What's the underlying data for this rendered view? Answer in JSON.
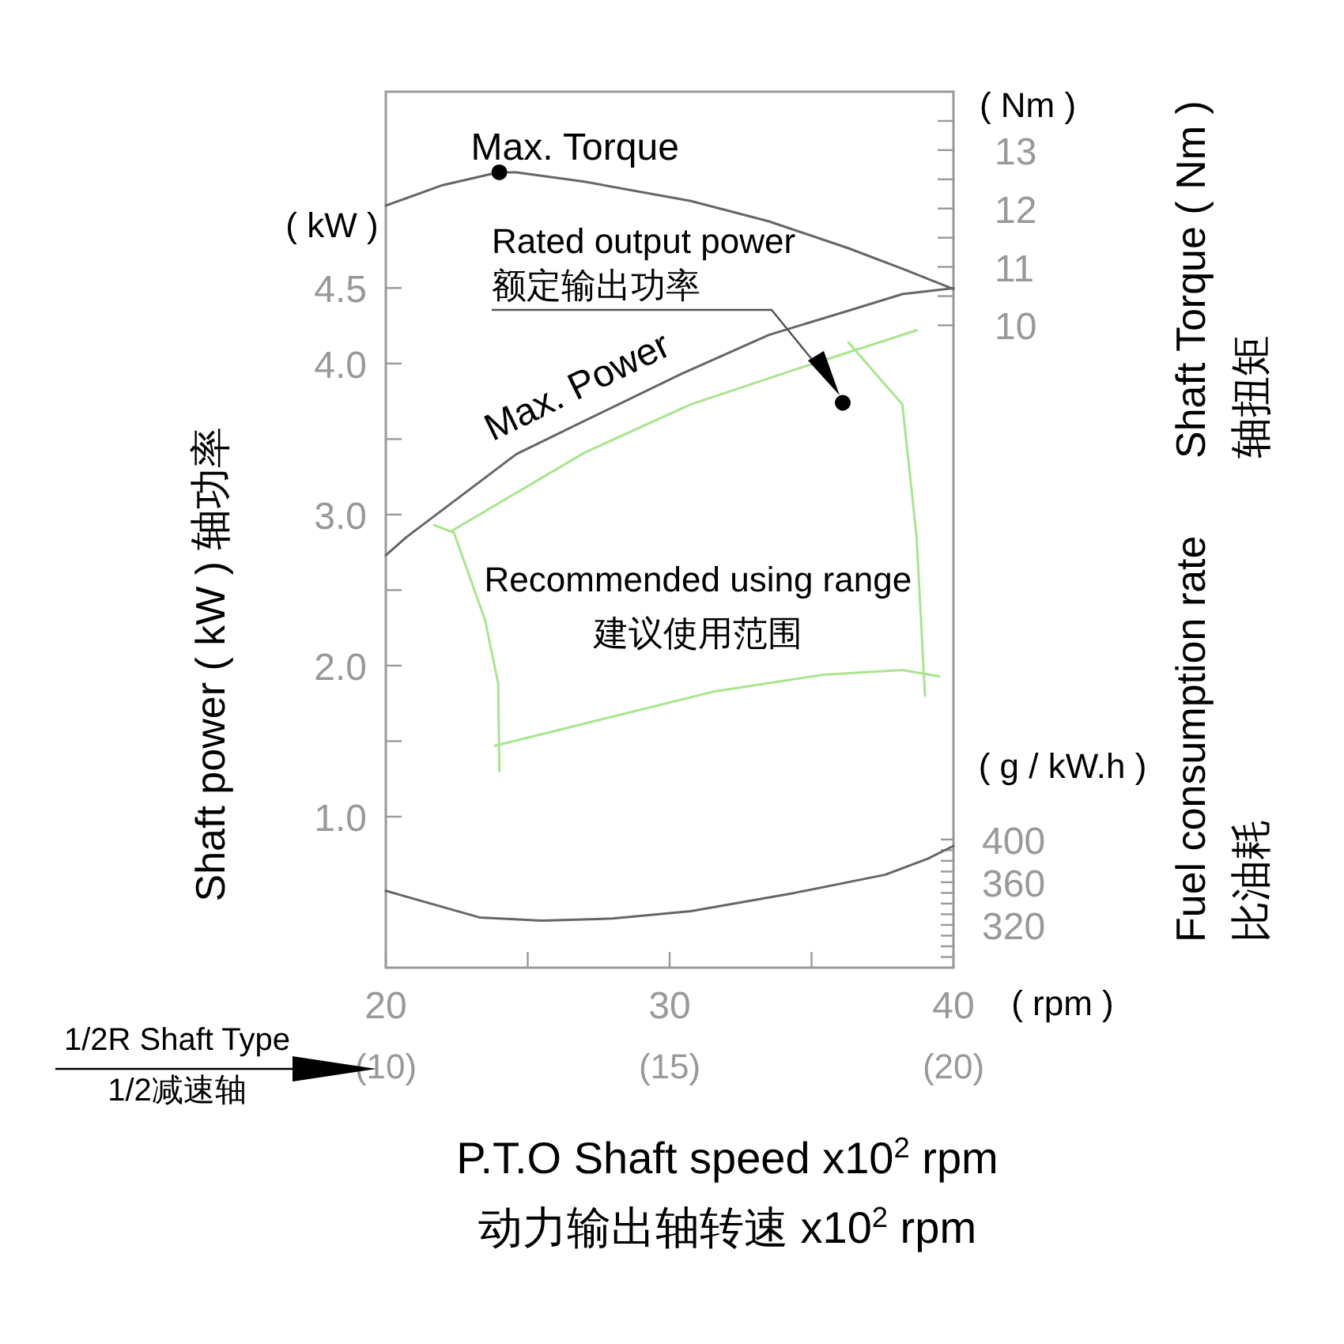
{
  "chart_data": {
    "type": "line",
    "xlabel": "P.T.O Shaft speed x10$^{2}$ rpm\n动力输出轴转速 x10$^{2}$ rpm",
    "x2label": "1/2R Shaft Type\n1/2减速轴",
    "ylabel": "Shaft power ( kW )   轴功率",
    "y2label": "Shaft Torque ( Nm )\n轴扭矩",
    "y3label": "Fuel consumption  rate\n比油耗",
    "xlim": [
      20,
      40
    ],
    "xticks": [
      20,
      {
        "value": 25,
        "label": null
      },
      30,
      {
        "value": 35,
        "label": null
      },
      40
    ],
    "x2lim": [
      10,
      20
    ],
    "x2ticks": [
      {
        "value": 10,
        "label": "(10)"
      },
      {
        "value": 15,
        "label": "(15)"
      },
      {
        "value": 20,
        "label": "(20)"
      }
    ],
    "ylim": [
      0,
      5.8
    ],
    "yticks": [
      {
        "value": 1,
        "label": "1.0"
      },
      {
        "value": 1.5,
        "label": null
      },
      {
        "value": 2,
        "label": "2.0"
      },
      {
        "value": 2.5,
        "label": null
      },
      {
        "value": 3,
        "label": "3.0"
      },
      {
        "value": 3.5,
        "label": null
      },
      {
        "value": 4,
        "label": "4.0"
      },
      4.5
    ],
    "y2lim": [
      -1,
      14
    ],
    "y2ticks": [
      10,
      {
        "value": 10.5,
        "label": null
      },
      11,
      {
        "value": 11.5,
        "label": null
      },
      12,
      {
        "value": 12.5,
        "label": null
      },
      13,
      {
        "value": 13.5,
        "label": null
      }
    ],
    "y3lim": [
      280,
      1100
    ],
    "y3ticks": [
      {
        "value": 290,
        "label": null
      },
      {
        "value": 300,
        "label": null
      },
      {
        "value": 310,
        "label": null
      },
      320,
      {
        "value": 330,
        "label": null
      },
      {
        "value": 340,
        "label": null
      },
      {
        "value": 350,
        "label": null
      },
      360,
      {
        "value": 370,
        "label": null
      },
      {
        "value": 380,
        "label": null
      },
      {
        "value": 390,
        "label": null
      },
      400
    ],
    "series": [
      {
        "color": "#666666",
        "axis": "y2",
        "x": [
          20,
          22,
          23.96,
          24.6,
          27,
          30.75,
          33.5,
          36.3,
          38.2,
          40
        ],
        "values": [
          12.05,
          12.4,
          12.62,
          12.62,
          12.46,
          12.13,
          11.78,
          11.32,
          10.97,
          10.62
        ]
      },
      {
        "name": "Max. Torque",
        "type": "scatter",
        "color": "#000000",
        "axis": "y2",
        "x": [
          24
        ],
        "values": [
          12.62
        ]
      },
      {
        "name": "Max. Power",
        "color": "#666666",
        "x": [
          20,
          20.72,
          24.6,
          27,
          30.4,
          33.5,
          36.3,
          38.2,
          40
        ],
        "values": [
          2.73,
          2.85,
          3.4,
          3.62,
          3.93,
          4.19,
          4.35,
          4.46,
          4.5
        ]
      },
      {
        "color": "#666666",
        "axis": "y3",
        "x": [
          20,
          23.3,
          25.5,
          28,
          30.75,
          34.4,
          37.6,
          39.1,
          40
        ],
        "values": [
          352,
          327,
          324,
          326,
          333,
          350,
          367,
          382,
          394
        ]
      },
      {
        "type": "scatter",
        "color": "#000000",
        "x": [
          36.1
        ],
        "values": [
          3.74
        ]
      },
      {
        "color": "#a9e58f",
        "x": [
          22.3,
          27,
          30.75,
          34.4,
          38.7
        ],
        "values": [
          2.89,
          3.41,
          3.73,
          3.96,
          4.22
        ]
      },
      {
        "color": "#a9e58f",
        "x": [
          36.3,
          38.2,
          38.7,
          39
        ],
        "values": [
          4.14,
          3.73,
          2.85,
          1.8
        ]
      },
      {
        "color": "#a9e58f",
        "x": [
          23.85,
          31.6,
          35.4,
          38.2,
          39.5
        ],
        "values": [
          1.47,
          1.83,
          1.94,
          1.97,
          1.93
        ]
      },
      {
        "color": "#a9e58f",
        "x": [
          21.7,
          22.4,
          23.5,
          23.96,
          24
        ],
        "values": [
          2.93,
          2.88,
          2.3,
          1.88,
          1.3
        ]
      }
    ],
    "annotations": [
      "Rated output power\n额定输出功率",
      "Recommended using range\n建议使用范围",
      "( kW )",
      "( Nm )",
      "( g / kW.h )",
      "( rpm )"
    ]
  }
}
